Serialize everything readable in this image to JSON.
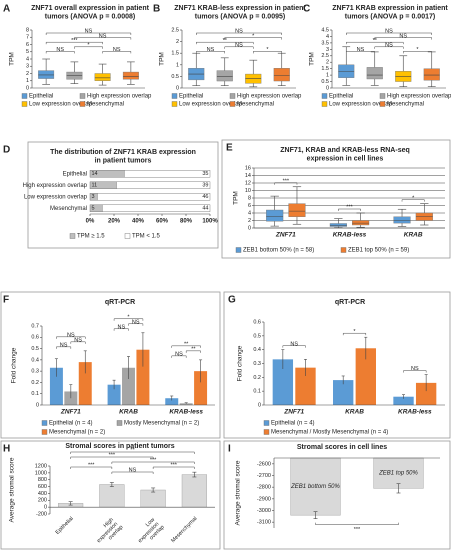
{
  "chart_data": [
    {
      "panel": "A",
      "type": "box",
      "title": [
        "ZNF71 overall expression in patient",
        "tumors (ANOVA p = 0.0008)"
      ],
      "y_label": "TPM",
      "ylim": [
        0,
        8
      ],
      "yticks": [
        0,
        1,
        2,
        3,
        4,
        5,
        6,
        7,
        8
      ],
      "series": [
        {
          "name": "Epithelial",
          "color": "#5b9bd5",
          "whisker_low": 0.5,
          "q1": 1.3,
          "median": 1.8,
          "q3": 2.4,
          "whisker_high": 4
        },
        {
          "name": "High expression overlap",
          "color": "#a5a5a5",
          "whisker_low": 0.6,
          "q1": 1.2,
          "median": 1.7,
          "q3": 2.2,
          "whisker_high": 3.6
        },
        {
          "name": "Low expression overlap",
          "color": "#ffc000",
          "whisker_low": 0.4,
          "q1": 1.0,
          "median": 1.4,
          "q3": 2.0,
          "whisker_high": 3.3
        },
        {
          "name": "Mesenchymal",
          "color": "#ed7d31",
          "whisker_low": 0.5,
          "q1": 1.2,
          "median": 1.6,
          "q3": 2.2,
          "whisker_high": 3.6
        }
      ],
      "brackets": [
        {
          "between": [
            "Epithelial",
            "Mesenchymal"
          ],
          "label": "NS"
        },
        {
          "between": [
            "High expression overlap",
            "Mesenchymal"
          ],
          "label": "NS"
        },
        {
          "between": [
            "Epithelial",
            "Low expression overlap"
          ],
          "label": "***"
        },
        {
          "between": [
            "High expression overlap",
            "Low expression overlap"
          ],
          "label": "*"
        },
        {
          "between": [
            "Epithelial",
            "High expression overlap"
          ],
          "label": "NS"
        },
        {
          "between": [
            "Low expression overlap",
            "Mesenchymal"
          ],
          "label": "NS"
        }
      ]
    },
    {
      "panel": "B",
      "type": "box",
      "title": [
        "ZNF71 KRAB-less expression in patient",
        "tumors (ANOVA p = 0.0095)"
      ],
      "y_label": "TPM",
      "ylim": [
        0,
        2.5
      ],
      "yticks": [
        0,
        0.5,
        1,
        1.5,
        2,
        2.5
      ],
      "series": [
        {
          "name": "Epithelial",
          "color": "#5b9bd5",
          "whisker_low": 0.1,
          "q1": 0.35,
          "median": 0.6,
          "q3": 0.85,
          "whisker_high": 1.5
        },
        {
          "name": "High expression overlap",
          "color": "#a5a5a5",
          "whisker_low": 0.1,
          "q1": 0.3,
          "median": 0.5,
          "q3": 0.75,
          "whisker_high": 1.3
        },
        {
          "name": "Low expression overlap",
          "color": "#ffc000",
          "whisker_low": 0.05,
          "q1": 0.2,
          "median": 0.4,
          "q3": 0.6,
          "whisker_high": 1.2
        },
        {
          "name": "Mesenchymal",
          "color": "#ed7d31",
          "whisker_low": 0.1,
          "q1": 0.3,
          "median": 0.55,
          "q3": 0.85,
          "whisker_high": 1.5
        }
      ],
      "brackets": [
        {
          "between": [
            "Epithelial",
            "Mesenchymal"
          ],
          "label": "NS"
        },
        {
          "between": [
            "High expression overlap",
            "Mesenchymal"
          ],
          "label": "*"
        },
        {
          "between": [
            "Epithelial",
            "Low expression overlap"
          ],
          "label": "**"
        },
        {
          "between": [
            "High expression overlap",
            "Low expression overlap"
          ],
          "label": "NS"
        },
        {
          "between": [
            "Epithelial",
            "High expression overlap"
          ],
          "label": "NS"
        },
        {
          "between": [
            "Low expression overlap",
            "Mesenchymal"
          ],
          "label": "*"
        }
      ]
    },
    {
      "panel": "C",
      "type": "box",
      "title": [
        "ZNF71 KRAB expression in patient",
        "tumors (ANOVA p = 0.0017)"
      ],
      "y_label": "TPM",
      "ylim": [
        0,
        4.5
      ],
      "yticks": [
        0,
        0.5,
        1,
        1.5,
        2,
        2.5,
        3,
        3.5,
        4,
        4.5
      ],
      "series": [
        {
          "name": "Epithelial",
          "color": "#5b9bd5",
          "whisker_low": 0.2,
          "q1": 0.8,
          "median": 1.3,
          "q3": 1.8,
          "whisker_high": 3.2
        },
        {
          "name": "High expression overlap",
          "color": "#a5a5a5",
          "whisker_low": 0.2,
          "q1": 0.7,
          "median": 1.0,
          "q3": 1.6,
          "whisker_high": 2.8
        },
        {
          "name": "Low expression overlap",
          "color": "#ffc000",
          "whisker_low": 0.1,
          "q1": 0.5,
          "median": 0.9,
          "q3": 1.3,
          "whisker_high": 2.5
        },
        {
          "name": "Mesenchymal",
          "color": "#ed7d31",
          "whisker_low": 0.1,
          "q1": 0.6,
          "median": 1.0,
          "q3": 1.5,
          "whisker_high": 2.8
        }
      ],
      "brackets": [
        {
          "between": [
            "Epithelial",
            "Mesenchymal"
          ],
          "label": "NS"
        },
        {
          "between": [
            "High expression overlap",
            "Mesenchymal"
          ],
          "label": "NS"
        },
        {
          "between": [
            "Epithelial",
            "Low expression overlap"
          ],
          "label": "**"
        },
        {
          "between": [
            "High expression overlap",
            "Low expression overlap"
          ],
          "label": "NS"
        },
        {
          "between": [
            "Epithelial",
            "High expression overlap"
          ],
          "label": "NS"
        },
        {
          "between": [
            "Low expression overlap",
            "Mesenchymal"
          ],
          "label": "*"
        }
      ]
    },
    {
      "panel": "D",
      "type": "bar100",
      "title": [
        "The distribution of ZNF71 KRAB expression",
        "in patient tumors"
      ],
      "categories": [
        "Epithelial",
        "High expression overlap",
        "Low expression overlap",
        "Mesenchymal"
      ],
      "xlim": [
        0,
        100
      ],
      "xticks": [
        {
          "value": 0,
          "label": "0%"
        },
        {
          "value": 20,
          "label": "20%"
        },
        {
          "value": 40,
          "label": "40%"
        },
        {
          "value": 60,
          "label": "60%"
        },
        {
          "value": 80,
          "label": "80%"
        },
        {
          "value": 100,
          "label": "100%"
        }
      ],
      "series": [
        {
          "name": "TPM ≥ 1.5",
          "color": "#bfbfbf",
          "values": [
            14,
            11,
            3,
            5
          ]
        },
        {
          "name": "TPM < 1.5",
          "color": "#ffffff",
          "values": [
            35,
            39,
            46,
            44
          ]
        }
      ]
    },
    {
      "panel": "E",
      "type": "grouped_box",
      "title": [
        "ZNF71, KRAB and KRAB-less RNA-seq",
        "expression in cell lines"
      ],
      "y_label": "TPM",
      "ylim": [
        0,
        16
      ],
      "yticks": [
        0,
        2,
        4,
        6,
        8,
        10,
        12,
        14,
        16
      ],
      "grid": true,
      "categories": [
        "ZNF71",
        "KRAB-less",
        "KRAB"
      ],
      "series": [
        {
          "name": "ZEB1 bottom 50% (n = 58)",
          "color": "#5b9bd5",
          "boxes": [
            {
              "whisker_low": 0.5,
              "q1": 1.8,
              "median": 3,
              "q3": 4.8,
              "whisker_high": 8.5
            },
            {
              "whisker_low": 0.1,
              "q1": 0.4,
              "median": 0.7,
              "q3": 1.2,
              "whisker_high": 2.5
            },
            {
              "whisker_low": 0.4,
              "q1": 1.3,
              "median": 2,
              "q3": 3,
              "whisker_high": 5
            }
          ]
        },
        {
          "name": "ZEB1 top 50% (n = 59)",
          "color": "#ed7d31",
          "boxes": [
            {
              "whisker_low": 1,
              "q1": 3,
              "median": 4.5,
              "q3": 6.5,
              "whisker_high": 11
            },
            {
              "whisker_low": 0.2,
              "q1": 0.8,
              "median": 1.3,
              "q3": 2,
              "whisker_high": 4
            },
            {
              "whisker_low": 0.8,
              "q1": 2,
              "median": 3,
              "q3": 4,
              "whisker_high": 6.5
            }
          ]
        }
      ],
      "brackets": [
        {
          "category": "ZNF71",
          "between": [
            "ZEB1 bottom 50% (n = 58)",
            "ZEB1 top 50% (n = 59)"
          ],
          "label": "***"
        },
        {
          "category": "KRAB-less",
          "between": [
            "ZEB1 bottom 50% (n = 58)",
            "ZEB1 top 50% (n = 59)"
          ],
          "label": "***"
        },
        {
          "category": "KRAB",
          "between": [
            "ZEB1 bottom 50% (n = 58)",
            "ZEB1 top 50% (n = 59)"
          ],
          "label": "*"
        }
      ]
    },
    {
      "panel": "F",
      "type": "grouped_bar",
      "title": "qRT-PCR",
      "y_label": "Fold change",
      "ylim": [
        0,
        0.7
      ],
      "yticks": [
        0,
        0.1,
        0.2,
        0.3,
        0.4,
        0.5,
        0.6,
        0.7
      ],
      "categories": [
        "ZNF71",
        "KRAB",
        "KRAB-less"
      ],
      "series": [
        {
          "name": "Epithelial (n = 4)",
          "color": "#5b9bd5",
          "values": [
            0.33,
            0.18,
            0.06
          ],
          "errors": [
            0.08,
            0.04,
            0.02
          ]
        },
        {
          "name": "Mostly Mesenchymal (n = 2)",
          "color": "#a5a5a5",
          "values": [
            0.12,
            0.33,
            0.015
          ],
          "errors": [
            0.06,
            0.1,
            0.005
          ]
        },
        {
          "name": "Mesenchymal (n = 2)",
          "color": "#ed7d31",
          "values": [
            0.38,
            0.49,
            0.3
          ],
          "errors": [
            0.1,
            0.15,
            0.1
          ]
        }
      ],
      "brackets": [
        {
          "category": "ZNF71",
          "between": [
            "Epithelial (n = 4)",
            "Mostly Mesenchymal (n = 2)"
          ],
          "label": "NS"
        },
        {
          "category": "ZNF71",
          "between": [
            "Mostly Mesenchymal (n = 2)",
            "Mesenchymal (n = 2)"
          ],
          "label": "NS"
        },
        {
          "category": "ZNF71",
          "between": [
            "Epithelial (n = 4)",
            "Mesenchymal (n = 2)"
          ],
          "label": "NS"
        },
        {
          "category": "KRAB",
          "between": [
            "Epithelial (n = 4)",
            "Mostly Mesenchymal (n = 2)"
          ],
          "label": "NS"
        },
        {
          "category": "KRAB",
          "between": [
            "Mostly Mesenchymal (n = 2)",
            "Mesenchymal (n = 2)"
          ],
          "label": "NS"
        },
        {
          "category": "KRAB",
          "between": [
            "Epithelial (n = 4)",
            "Mesenchymal (n = 2)"
          ],
          "label": "*"
        },
        {
          "category": "KRAB-less",
          "between": [
            "Epithelial (n = 4)",
            "Mostly Mesenchymal (n = 2)"
          ],
          "label": "NS"
        },
        {
          "category": "KRAB-less",
          "between": [
            "Mostly Mesenchymal (n = 2)",
            "Mesenchymal (n = 2)"
          ],
          "label": "**"
        },
        {
          "category": "KRAB-less",
          "between": [
            "Epithelial (n = 4)",
            "Mesenchymal (n = 2)"
          ],
          "label": "**"
        }
      ]
    },
    {
      "panel": "G",
      "type": "grouped_bar",
      "title": "qRT-PCR",
      "y_label": "Fold change",
      "ylim": [
        0,
        0.6
      ],
      "yticks": [
        0,
        0.1,
        0.2,
        0.3,
        0.4,
        0.5,
        0.6
      ],
      "categories": [
        "ZNF71",
        "KRAB",
        "KRAB-less"
      ],
      "series": [
        {
          "name": "Epithelial (n = 4)",
          "color": "#5b9bd5",
          "values": [
            0.33,
            0.18,
            0.06
          ],
          "errors": [
            0.07,
            0.03,
            0.015
          ]
        },
        {
          "name": "Mesenchymal / Mostly Mesenchymal (n = 4)",
          "color": "#ed7d31",
          "values": [
            0.27,
            0.41,
            0.16
          ],
          "errors": [
            0.06,
            0.08,
            0.06
          ]
        }
      ],
      "brackets": [
        {
          "category": "ZNF71",
          "between": [
            "Epithelial (n = 4)",
            "Mesenchymal / Mostly Mesenchymal (n = 4)"
          ],
          "label": "NS"
        },
        {
          "category": "KRAB",
          "between": [
            "Epithelial (n = 4)",
            "Mesenchymal / Mostly Mesenchymal (n = 4)"
          ],
          "label": "*"
        },
        {
          "category": "KRAB-less",
          "between": [
            "Epithelial (n = 4)",
            "Mesenchymal / Mostly Mesenchymal (n = 4)"
          ],
          "label": "NS"
        }
      ]
    },
    {
      "panel": "H",
      "type": "bar",
      "title": "Stromal scores in patient tumors",
      "y_label": "Average stromal score",
      "ylim": [
        -200,
        1200
      ],
      "yticks": [
        -200,
        0,
        200,
        400,
        600,
        800,
        1000,
        1200
      ],
      "color": "#d9d9d9",
      "categories": [
        "Epithelial",
        "High expression overlap",
        "Low expression overlap",
        "Mesenchymal"
      ],
      "values": [
        110,
        660,
        500,
        950
      ],
      "errors": [
        50,
        60,
        60,
        70
      ],
      "brackets": [
        {
          "between": [
            "Epithelial",
            "Mesenchymal"
          ],
          "label": "**"
        },
        {
          "between": [
            "Epithelial",
            "Low expression overlap"
          ],
          "label": "***"
        },
        {
          "between": [
            "High expression overlap",
            "Mesenchymal"
          ],
          "label": "***"
        },
        {
          "between": [
            "Epithelial",
            "High expression overlap"
          ],
          "label": "***"
        },
        {
          "between": [
            "High expression overlap",
            "Low expression overlap"
          ],
          "label": "NS"
        },
        {
          "between": [
            "Low expression overlap",
            "Mesenchymal"
          ],
          "label": "***"
        }
      ]
    },
    {
      "panel": "I",
      "type": "bar",
      "title": "Stromal scores in cell lines",
      "y_label": "Average stromal score",
      "ylim": [
        -3150,
        -2550
      ],
      "yticks": [
        -3100,
        -3000,
        -2900,
        -2800,
        -2700,
        -2600
      ],
      "color": "#d9d9d9",
      "categories": [
        "ZEB1 bottom 50%",
        "ZEB1 top 50%"
      ],
      "values": [
        -3040,
        -2810
      ],
      "errors": [
        30,
        40
      ],
      "bracket_position": "below",
      "brackets": [
        {
          "between": [
            "ZEB1 bottom 50%",
            "ZEB1 top 50%"
          ],
          "label": "***"
        }
      ]
    }
  ]
}
